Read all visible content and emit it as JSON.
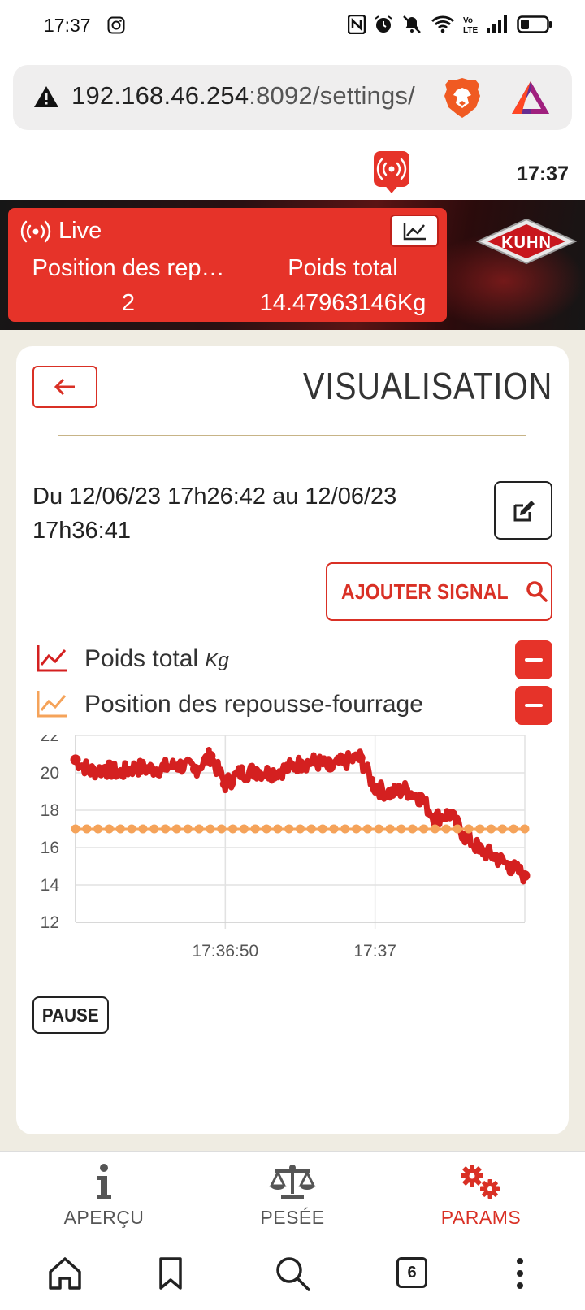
{
  "status_bar": {
    "time": "17:37"
  },
  "browser": {
    "url_host": "192.168.46.254",
    "url_rest": ":8092/settings/",
    "tab_count": "6"
  },
  "header": {
    "clock": "17:37",
    "brand": "KUHN"
  },
  "live": {
    "label": "Live",
    "col1_name": "Position des rep…",
    "col1_value": "2",
    "col2_name": "Poids total",
    "col2_value": "14.47963146Kg"
  },
  "page": {
    "title": "VISUALISATION",
    "date_range": "Du 12/06/23 17h26:42 au 12/06/23 17h36:41",
    "add_signal_label": "AJOUTER SIGNAL",
    "pause_label": "PAUSE"
  },
  "signals": [
    {
      "name": "Poids total",
      "unit": "Kg",
      "color": "#d42020"
    },
    {
      "name": "Position des repousse-fourrage",
      "unit": "",
      "color": "#f5a35a"
    }
  ],
  "chart_data": {
    "type": "line",
    "ylim": [
      12,
      22
    ],
    "yticks": [
      "12",
      "14",
      "16",
      "18",
      "20",
      "22"
    ],
    "xticks": [
      "17:36:50",
      "17:37"
    ],
    "x_units": "seconds after 17:36:40",
    "series": [
      {
        "name": "Poids total",
        "color": "#d42020",
        "x": [
          0,
          1,
          2,
          3,
          4,
          5,
          6,
          7,
          8,
          9,
          10,
          11,
          12,
          13,
          14,
          15,
          16,
          17,
          18,
          19,
          20,
          21,
          22,
          23,
          24,
          25,
          26,
          27,
          28,
          29,
          30
        ],
        "values": [
          20.7,
          20.1,
          20.2,
          20.0,
          20.3,
          20.2,
          20.3,
          20.4,
          20.2,
          20.9,
          19.4,
          20.0,
          20.1,
          20.0,
          20.2,
          20.5,
          20.6,
          20.3,
          20.6,
          20.8,
          19.2,
          18.9,
          19.1,
          18.7,
          17.6,
          17.8,
          16.6,
          15.9,
          15.5,
          15.0,
          14.5
        ]
      },
      {
        "name": "Position des repousse-fourrage",
        "color": "#f5a35a",
        "x": [
          0,
          30
        ],
        "values": [
          17,
          17
        ]
      }
    ]
  }
}
